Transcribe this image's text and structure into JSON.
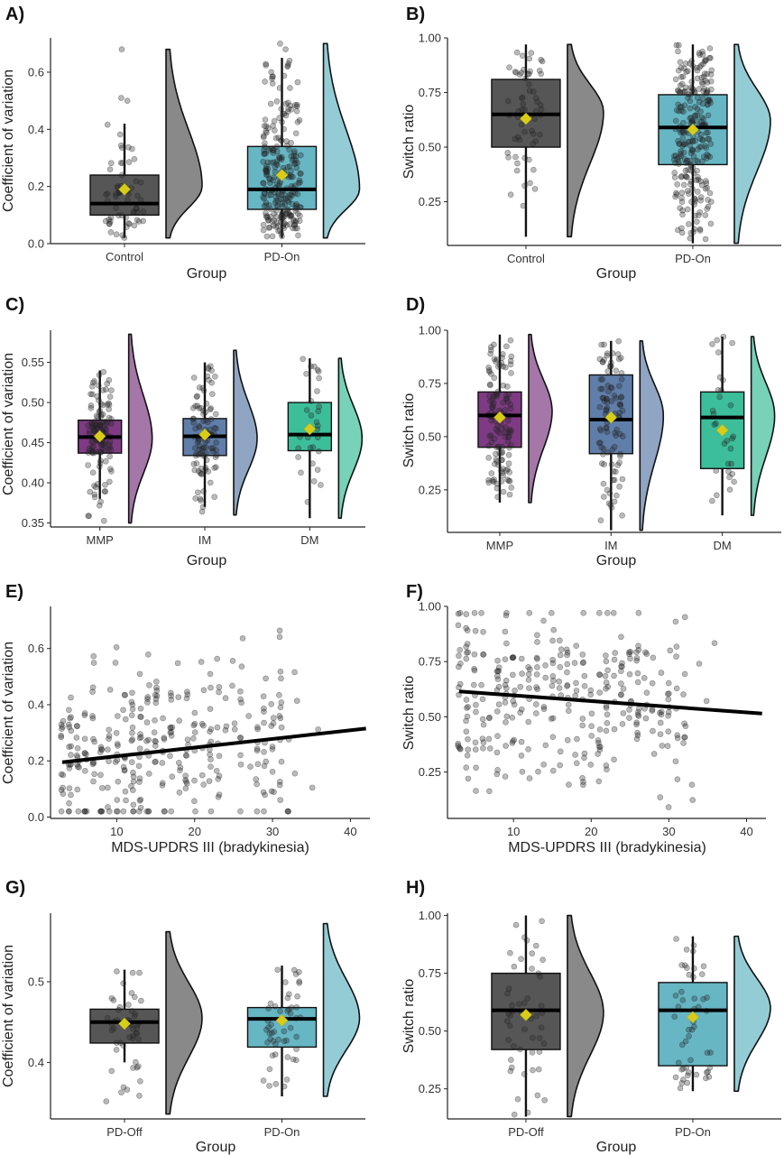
{
  "chart_data": [
    {
      "panel": "A)",
      "type": "raincloud",
      "xlabel": "Group",
      "ylabel": "Coefficient of variation",
      "ylim": [
        0,
        0.72
      ],
      "yticks": [
        0.0,
        0.2,
        0.4,
        0.6
      ],
      "tick_decimals": 1,
      "groups": [
        {
          "label": "Control",
          "color": "#575656",
          "box": {
            "whisker_low": 0.02,
            "q1": 0.1,
            "median": 0.14,
            "q3": 0.24,
            "whisker_high": 0.42
          },
          "mean": 0.19,
          "range": [
            0.02,
            0.68
          ],
          "n": 60,
          "seed": 11,
          "pts_max": 0.68,
          "outliers": [
            0.51,
            0.5,
            0.68
          ],
          "density_peak": 0.2
        },
        {
          "label": "PD-On",
          "color": "#66B6C4",
          "box": {
            "whisker_low": 0.02,
            "q1": 0.12,
            "median": 0.19,
            "q3": 0.34,
            "whisker_high": 0.65
          },
          "mean": 0.24,
          "range": [
            0.02,
            0.7
          ],
          "n": 260,
          "seed": 12,
          "pts_max": 0.7,
          "outliers": [
            0.68,
            0.7
          ],
          "density_peak": 0.19
        }
      ]
    },
    {
      "panel": "B)",
      "type": "raincloud",
      "xlabel": "Group",
      "ylabel": "Switch ratio",
      "ylim": [
        0.05,
        1.0
      ],
      "yticks": [
        0.25,
        0.5,
        0.75,
        1.0
      ],
      "tick_decimals": 2,
      "groups": [
        {
          "label": "Control",
          "color": "#575656",
          "box": {
            "whisker_low": 0.09,
            "q1": 0.5,
            "median": 0.65,
            "q3": 0.81,
            "whisker_high": 0.97
          },
          "mean": 0.63,
          "range": [
            0.09,
            0.97
          ],
          "n": 60,
          "seed": 21,
          "density_peak": 0.66
        },
        {
          "label": "PD-On",
          "color": "#66B6C4",
          "box": {
            "whisker_low": 0.06,
            "q1": 0.42,
            "median": 0.59,
            "q3": 0.74,
            "whisker_high": 0.97
          },
          "mean": 0.58,
          "range": [
            0.06,
            0.97
          ],
          "n": 260,
          "seed": 22,
          "density_peak": 0.62
        }
      ]
    },
    {
      "panel": "C)",
      "type": "raincloud",
      "xlabel": "Group",
      "ylabel": "Coefficient of variation",
      "ylim": [
        0.345,
        0.59
      ],
      "yticks": [
        0.35,
        0.4,
        0.45,
        0.5,
        0.55
      ],
      "tick_decimals": 2,
      "groups": [
        {
          "label": "MMP",
          "color": "#7E3B83",
          "box": {
            "whisker_low": 0.38,
            "q1": 0.437,
            "median": 0.457,
            "q3": 0.478,
            "whisker_high": 0.54
          },
          "mean": 0.458,
          "range": [
            0.35,
            0.585
          ],
          "n": 130,
          "seed": 31,
          "density_peak": 0.455
        },
        {
          "label": "IM",
          "color": "#5F7EA9",
          "box": {
            "whisker_low": 0.37,
            "q1": 0.434,
            "median": 0.458,
            "q3": 0.48,
            "whisker_high": 0.55
          },
          "mean": 0.46,
          "range": [
            0.36,
            0.565
          ],
          "n": 100,
          "seed": 32,
          "density_peak": 0.455
        },
        {
          "label": "DM",
          "color": "#3DBE9A",
          "box": {
            "whisker_low": 0.356,
            "q1": 0.44,
            "median": 0.46,
            "q3": 0.5,
            "whisker_high": 0.555
          },
          "mean": 0.467,
          "range": [
            0.356,
            0.555
          ],
          "n": 30,
          "seed": 33,
          "density_peak": 0.455
        }
      ]
    },
    {
      "panel": "D)",
      "type": "raincloud",
      "xlabel": "Group",
      "ylabel": "Switch ratio",
      "ylim": [
        0.05,
        1.0
      ],
      "yticks": [
        0.25,
        0.5,
        0.75,
        1.0
      ],
      "tick_decimals": 2,
      "groups": [
        {
          "label": "MMP",
          "color": "#7E3B83",
          "box": {
            "whisker_low": 0.19,
            "q1": 0.45,
            "median": 0.6,
            "q3": 0.71,
            "whisker_high": 0.98
          },
          "mean": 0.59,
          "range": [
            0.19,
            0.98
          ],
          "n": 130,
          "seed": 41,
          "density_peak": 0.62
        },
        {
          "label": "IM",
          "color": "#5F7EA9",
          "box": {
            "whisker_low": 0.06,
            "q1": 0.42,
            "median": 0.58,
            "q3": 0.79,
            "whisker_high": 0.95
          },
          "mean": 0.59,
          "range": [
            0.06,
            0.95
          ],
          "n": 100,
          "seed": 42,
          "density_peak": 0.6
        },
        {
          "label": "DM",
          "color": "#3DBE9A",
          "box": {
            "whisker_low": 0.13,
            "q1": 0.35,
            "median": 0.59,
            "q3": 0.71,
            "whisker_high": 0.97
          },
          "mean": 0.53,
          "range": [
            0.13,
            0.97
          ],
          "n": 30,
          "seed": 43,
          "density_peak": 0.6
        }
      ]
    },
    {
      "panel": "E)",
      "type": "scatter",
      "xlabel": "MDS-UPDRS III (bradykinesia)",
      "ylabel": "Coefficient of variation",
      "xlim": [
        1.5,
        42.5
      ],
      "ylim": [
        -0.005,
        0.75
      ],
      "xticks": [
        10,
        20,
        30,
        40
      ],
      "yticks": [
        0.0,
        0.2,
        0.4,
        0.6
      ],
      "tick_decimals": 1,
      "n": 330,
      "seed": 51,
      "fit": {
        "x": [
          3,
          42
        ],
        "y": [
          0.195,
          0.315
        ]
      },
      "y_range": [
        0.02,
        0.7
      ]
    },
    {
      "panel": "F)",
      "type": "scatter",
      "xlabel": "MDS-UPDRS III (bradykinesia)",
      "ylabel": "Switch ratio",
      "xlim": [
        1.5,
        42.5
      ],
      "ylim": [
        0.04,
        1.0
      ],
      "xticks": [
        10,
        20,
        30,
        40
      ],
      "yticks": [
        0.25,
        0.5,
        0.75,
        1.0
      ],
      "tick_decimals": 2,
      "n": 330,
      "seed": 61,
      "fit": {
        "x": [
          3,
          42
        ],
        "y": [
          0.615,
          0.515
        ]
      },
      "y_range": [
        0.06,
        0.97
      ]
    },
    {
      "panel": "G)",
      "type": "raincloud",
      "xlabel": "Group",
      "ylabel": "Coefficient of variation",
      "ylim": [
        0.33,
        0.585
      ],
      "yticks": [
        0.4,
        0.5
      ],
      "tick_decimals": 1,
      "groups": [
        {
          "label": "PD-Off",
          "color": "#575656",
          "box": {
            "whisker_low": 0.4,
            "q1": 0.424,
            "median": 0.45,
            "q3": 0.466,
            "whisker_high": 0.515
          },
          "mean": 0.448,
          "range": [
            0.336,
            0.562
          ],
          "n": 50,
          "seed": 71,
          "density_peak": 0.455
        },
        {
          "label": "PD-On",
          "color": "#66B6C4",
          "box": {
            "whisker_low": 0.358,
            "q1": 0.419,
            "median": 0.454,
            "q3": 0.468,
            "whisker_high": 0.52
          },
          "mean": 0.452,
          "range": [
            0.358,
            0.572
          ],
          "n": 50,
          "seed": 72,
          "density_peak": 0.455
        }
      ]
    },
    {
      "panel": "H)",
      "type": "raincloud",
      "xlabel": "Group",
      "ylabel": "Switch ratio",
      "ylim": [
        0.12,
        1.01
      ],
      "yticks": [
        0.25,
        0.5,
        0.75,
        1.0
      ],
      "tick_decimals": 2,
      "groups": [
        {
          "label": "PD-Off",
          "color": "#575656",
          "box": {
            "whisker_low": 0.13,
            "q1": 0.42,
            "median": 0.59,
            "q3": 0.75,
            "whisker_high": 1.0
          },
          "mean": 0.57,
          "range": [
            0.13,
            1.0
          ],
          "n": 50,
          "seed": 81,
          "density_peak": 0.58
        },
        {
          "label": "PD-On",
          "color": "#66B6C4",
          "box": {
            "whisker_low": 0.24,
            "q1": 0.35,
            "median": 0.59,
            "q3": 0.71,
            "whisker_high": 0.91
          },
          "mean": 0.56,
          "range": [
            0.24,
            0.91
          ],
          "n": 50,
          "seed": 82,
          "density_peak": 0.6
        }
      ]
    }
  ]
}
